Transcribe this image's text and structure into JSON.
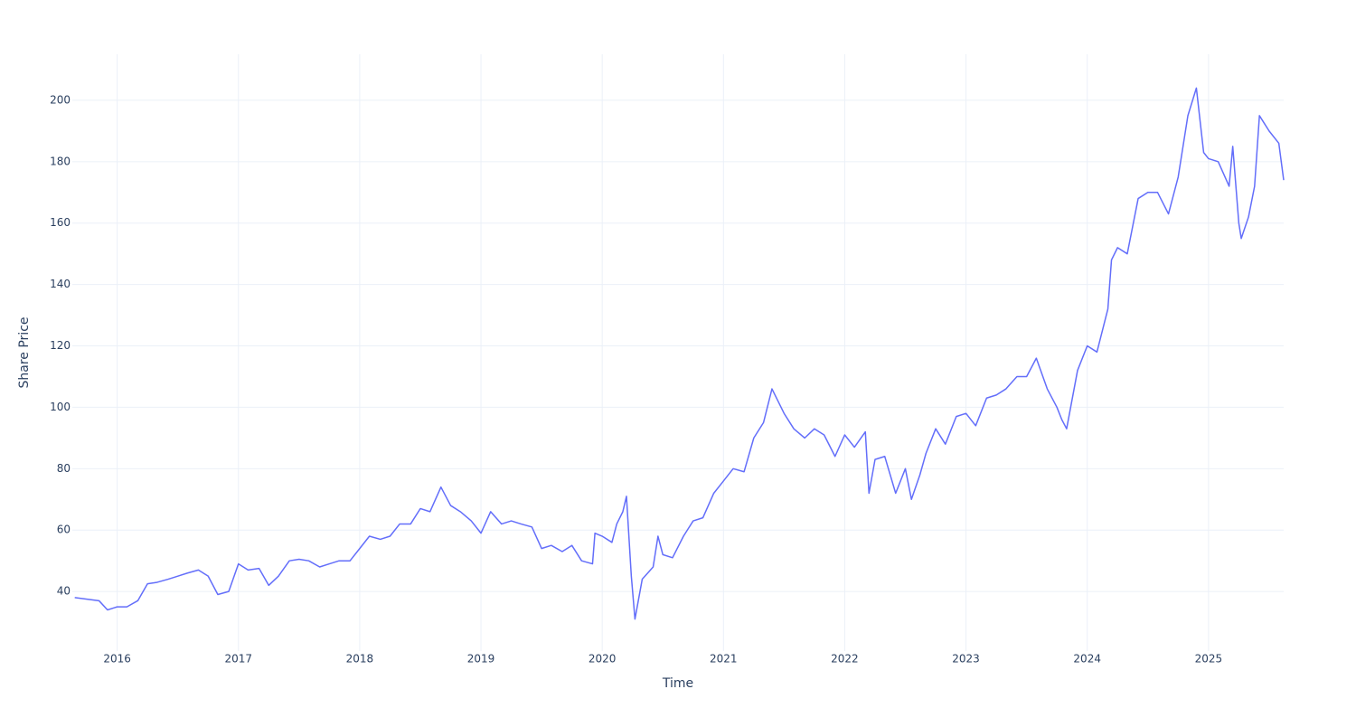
{
  "chart_data": {
    "type": "line",
    "x_label": "Time",
    "y_label": "Share Price",
    "series": [
      {
        "name": "Share Price",
        "color": "#636efa",
        "x": [
          2015.65,
          2015.75,
          2015.85,
          2015.92,
          2016.0,
          2016.08,
          2016.17,
          2016.25,
          2016.33,
          2016.42,
          2016.5,
          2016.58,
          2016.67,
          2016.75,
          2016.83,
          2016.92,
          2017.0,
          2017.08,
          2017.17,
          2017.25,
          2017.33,
          2017.42,
          2017.5,
          2017.58,
          2017.67,
          2017.75,
          2017.83,
          2017.92,
          2018.0,
          2018.08,
          2018.17,
          2018.25,
          2018.33,
          2018.42,
          2018.5,
          2018.58,
          2018.67,
          2018.75,
          2018.83,
          2018.92,
          2019.0,
          2019.08,
          2019.17,
          2019.25,
          2019.33,
          2019.42,
          2019.5,
          2019.58,
          2019.67,
          2019.75,
          2019.83,
          2019.92,
          2019.94,
          2020.0,
          2020.08,
          2020.12,
          2020.17,
          2020.2,
          2020.24,
          2020.27,
          2020.33,
          2020.42,
          2020.46,
          2020.5,
          2020.58,
          2020.67,
          2020.75,
          2020.83,
          2020.92,
          2021.0,
          2021.08,
          2021.17,
          2021.25,
          2021.33,
          2021.4,
          2021.5,
          2021.58,
          2021.67,
          2021.75,
          2021.83,
          2021.92,
          2022.0,
          2022.08,
          2022.17,
          2022.2,
          2022.25,
          2022.33,
          2022.42,
          2022.5,
          2022.55,
          2022.62,
          2022.67,
          2022.75,
          2022.83,
          2022.92,
          2023.0,
          2023.08,
          2023.17,
          2023.25,
          2023.33,
          2023.42,
          2023.5,
          2023.58,
          2023.67,
          2023.75,
          2023.79,
          2023.83,
          2023.92,
          2024.0,
          2024.08,
          2024.17,
          2024.2,
          2024.25,
          2024.33,
          2024.42,
          2024.5,
          2024.58,
          2024.67,
          2024.75,
          2024.83,
          2024.9,
          2024.96,
          2025.0,
          2025.08,
          2025.17,
          2025.2,
          2025.25,
          2025.27,
          2025.33,
          2025.38,
          2025.42,
          2025.5,
          2025.58,
          2025.62
        ],
        "values": [
          38,
          37.5,
          37,
          34,
          35,
          35,
          37,
          42.5,
          43,
          44,
          45,
          46,
          47,
          45,
          39,
          40,
          49,
          47,
          47.5,
          42,
          45,
          50,
          50.5,
          50,
          48,
          49,
          50,
          50,
          54,
          58,
          57,
          58,
          62,
          62,
          67,
          66,
          74,
          68,
          66,
          63,
          59,
          66,
          62,
          63,
          62,
          61,
          54,
          55,
          53,
          55,
          50,
          49,
          59,
          58,
          56,
          62,
          66,
          71,
          45,
          31,
          44,
          48,
          58,
          52,
          51,
          58,
          63,
          64,
          72,
          76,
          80,
          79,
          90,
          95,
          106,
          98,
          93,
          90,
          93,
          91,
          84,
          91,
          87,
          92,
          72,
          83,
          84,
          72,
          80,
          70,
          78,
          85,
          93,
          88,
          97,
          98,
          94,
          103,
          104,
          106,
          110,
          110,
          116,
          106,
          100,
          96,
          93,
          112,
          120,
          118,
          132,
          148,
          152,
          150,
          168,
          170,
          170,
          163,
          175,
          195,
          204,
          183,
          181,
          180,
          172,
          185,
          160,
          155,
          162,
          172,
          195,
          190,
          186,
          174
        ]
      }
    ],
    "xlim": [
      2015.63,
      2025.62
    ],
    "xticks": [
      2016,
      2017,
      2018,
      2019,
      2020,
      2021,
      2022,
      2023,
      2024,
      2025
    ],
    "ylim": [
      20.6,
      215
    ],
    "yticks": [
      40,
      60,
      80,
      100,
      120,
      140,
      160,
      180,
      200
    ],
    "grid": true
  }
}
